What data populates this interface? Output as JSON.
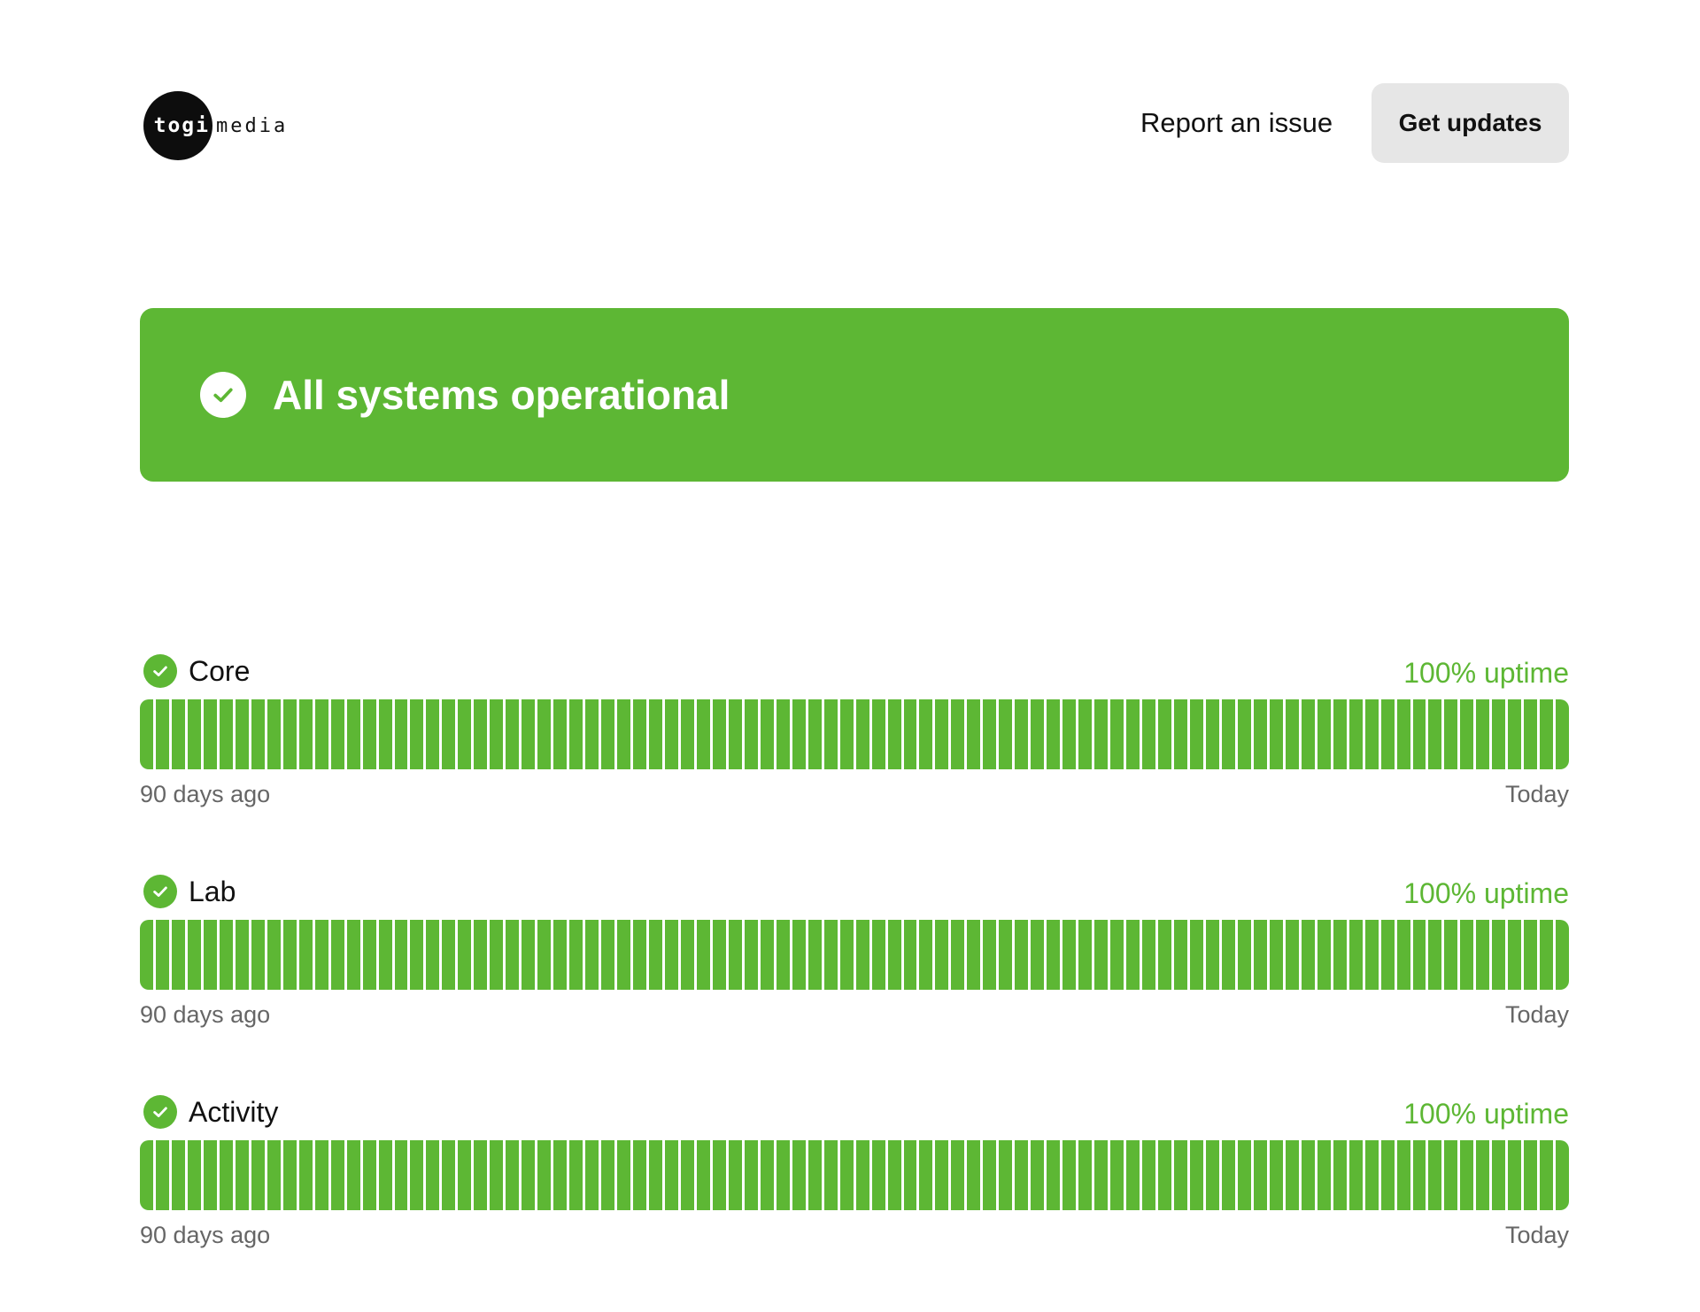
{
  "header": {
    "logo_mark": "togi",
    "logo_word": "media",
    "report_label": "Report an issue",
    "updates_label": "Get updates"
  },
  "banner": {
    "icon": "check-circle-icon",
    "text": "All systems operational",
    "color": "#5db734"
  },
  "services": [
    {
      "name": "Core",
      "uptime": "100% uptime",
      "uptime_fraction": 1.0,
      "days": 90,
      "start_label": "90 days ago",
      "end_label": "Today",
      "icon": "check-circle-icon"
    },
    {
      "name": "Lab",
      "uptime": "100% uptime",
      "uptime_fraction": 1.0,
      "days": 90,
      "start_label": "90 days ago",
      "end_label": "Today",
      "icon": "check-circle-icon"
    },
    {
      "name": "Activity",
      "uptime": "100% uptime",
      "uptime_fraction": 1.0,
      "days": 90,
      "start_label": "90 days ago",
      "end_label": "Today",
      "icon": "check-circle-icon"
    }
  ],
  "colors": {
    "operational": "#5db734",
    "muted_text": "#666666",
    "button_bg": "#e6e6e6"
  }
}
